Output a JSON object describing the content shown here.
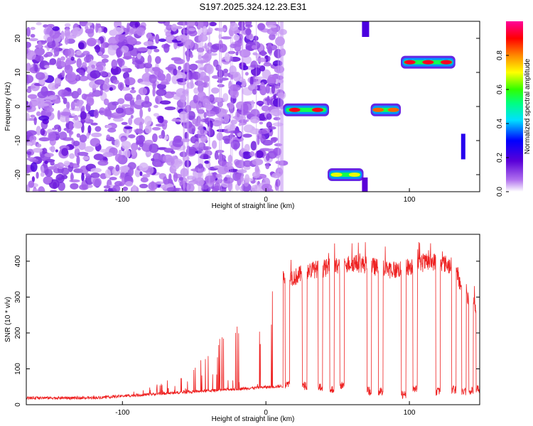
{
  "title": "S197.2025.324.12.23.E31",
  "chart_data": [
    {
      "type": "heatmap",
      "title": "S197.2025.324.12.23.E31",
      "xlabel": "Height of straight line (km)",
      "ylabel": "Frequency (Hz)",
      "xlim": [
        -167,
        149
      ],
      "ylim": [
        -25,
        25
      ],
      "xticks": [
        -100,
        0,
        100
      ],
      "yticks": [
        -20,
        -10,
        0,
        10,
        20
      ],
      "noise_region": {
        "x_range": [
          -167,
          12
        ],
        "freq_range": [
          -25,
          25
        ],
        "typical_amplitude": 0.15
      },
      "tone_segments": [
        {
          "x_start": 12,
          "x_end": 44,
          "freq": -1,
          "peak_amplitude": 1.0
        },
        {
          "x_start": 43,
          "x_end": 68,
          "freq": -20,
          "peak_amplitude": 0.75
        },
        {
          "x_start": 73,
          "x_end": 94,
          "freq": -1,
          "peak_amplitude": 0.9
        },
        {
          "x_start": 94,
          "x_end": 132,
          "freq": 13,
          "peak_amplitude": 1.0
        }
      ],
      "colorbar": {
        "label": "Normalized spectral amplitude",
        "range": [
          0.0,
          1.0
        ],
        "ticks": [
          0.0,
          0.2,
          0.4,
          0.6,
          0.8
        ]
      }
    },
    {
      "type": "line",
      "xlabel": "Height of straight line (km)",
      "ylabel": "SNR (10 * v/v)",
      "xlim": [
        -167,
        149
      ],
      "ylim": [
        0,
        475
      ],
      "xticks": [
        -100,
        0,
        100
      ],
      "yticks": [
        0,
        100,
        200,
        300,
        400
      ],
      "series": [
        {
          "name": "SNR",
          "color": "#ee2222",
          "x": [
            -167,
            -150,
            -130,
            -110,
            -90,
            -70,
            -50,
            -40,
            -30,
            -20,
            -10,
            0,
            5,
            10,
            15,
            20,
            30,
            40,
            50,
            60,
            70,
            80,
            90,
            100,
            110,
            120,
            130,
            140,
            149
          ],
          "values": [
            18,
            20,
            22,
            25,
            35,
            60,
            90,
            120,
            160,
            200,
            240,
            250,
            270,
            340,
            360,
            355,
            375,
            380,
            385,
            395,
            390,
            380,
            375,
            385,
            395,
            400,
            385,
            300,
            260
          ],
          "drops": [
            {
              "x": 15,
              "low": 45
            },
            {
              "x": 27,
              "low": 40
            },
            {
              "x": 38,
              "low": 35
            },
            {
              "x": 46,
              "low": 30
            },
            {
              "x": 53,
              "low": 40
            },
            {
              "x": 72,
              "low": 25
            },
            {
              "x": 80,
              "low": 25
            },
            {
              "x": 96,
              "low": 15
            },
            {
              "x": 104,
              "low": 35
            },
            {
              "x": 120,
              "low": 25
            },
            {
              "x": 131,
              "low": 30
            },
            {
              "x": 138,
              "low": 25
            },
            {
              "x": 143,
              "low": 25
            },
            {
              "x": 148,
              "low": 30
            }
          ]
        }
      ]
    }
  ]
}
